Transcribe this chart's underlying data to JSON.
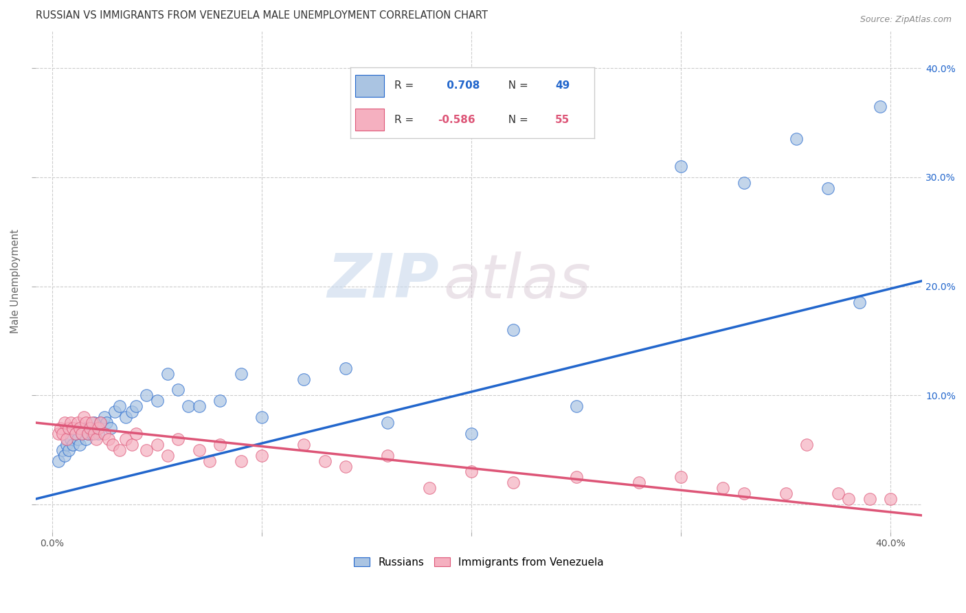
{
  "title": "RUSSIAN VS IMMIGRANTS FROM VENEZUELA MALE UNEMPLOYMENT CORRELATION CHART",
  "source": "Source: ZipAtlas.com",
  "ylabel": "Male Unemployment",
  "x_ticks": [
    0.0,
    0.1,
    0.2,
    0.3,
    0.4
  ],
  "x_tick_labels": [
    "0.0%",
    "",
    "",
    "",
    "40.0%"
  ],
  "y_ticks_left": [
    0.0,
    0.1,
    0.2,
    0.3,
    0.4
  ],
  "y_tick_labels_left": [
    "",
    "",
    "",
    "",
    ""
  ],
  "y_ticks_right": [
    0.1,
    0.2,
    0.3,
    0.4
  ],
  "y_tick_labels_right": [
    "10.0%",
    "20.0%",
    "30.0%",
    "40.0%"
  ],
  "xlim": [
    -0.008,
    0.415
  ],
  "ylim": [
    -0.025,
    0.435
  ],
  "legend_labels": [
    "Russians",
    "Immigrants from Venezuela"
  ],
  "russian_R": 0.708,
  "russian_N": 49,
  "venezuela_R": -0.586,
  "venezuela_N": 55,
  "russian_color": "#aac4e2",
  "venezuela_color": "#f5b0c0",
  "russian_line_color": "#2266cc",
  "venezuela_line_color": "#dd5577",
  "watermark_zip": "ZIP",
  "watermark_atlas": "atlas",
  "background_color": "#ffffff",
  "grid_color": "#cccccc",
  "title_color": "#333333",
  "title_fontsize": 10.5,
  "source_fontsize": 9,
  "russian_scatter_x": [
    0.003,
    0.005,
    0.006,
    0.007,
    0.008,
    0.009,
    0.01,
    0.011,
    0.012,
    0.013,
    0.014,
    0.015,
    0.016,
    0.017,
    0.018,
    0.019,
    0.02,
    0.021,
    0.022,
    0.023,
    0.025,
    0.026,
    0.028,
    0.03,
    0.032,
    0.035,
    0.038,
    0.04,
    0.045,
    0.05,
    0.055,
    0.06,
    0.065,
    0.07,
    0.08,
    0.09,
    0.1,
    0.12,
    0.14,
    0.16,
    0.2,
    0.22,
    0.25,
    0.3,
    0.33,
    0.355,
    0.37,
    0.385,
    0.395
  ],
  "russian_scatter_y": [
    0.04,
    0.05,
    0.045,
    0.055,
    0.05,
    0.06,
    0.055,
    0.065,
    0.06,
    0.055,
    0.065,
    0.07,
    0.06,
    0.065,
    0.07,
    0.065,
    0.075,
    0.07,
    0.065,
    0.075,
    0.08,
    0.075,
    0.07,
    0.085,
    0.09,
    0.08,
    0.085,
    0.09,
    0.1,
    0.095,
    0.12,
    0.105,
    0.09,
    0.09,
    0.095,
    0.12,
    0.08,
    0.115,
    0.125,
    0.075,
    0.065,
    0.16,
    0.09,
    0.31,
    0.295,
    0.335,
    0.29,
    0.185,
    0.365
  ],
  "venezuela_scatter_x": [
    0.003,
    0.004,
    0.005,
    0.006,
    0.007,
    0.008,
    0.009,
    0.01,
    0.011,
    0.012,
    0.013,
    0.014,
    0.015,
    0.016,
    0.017,
    0.018,
    0.019,
    0.02,
    0.021,
    0.022,
    0.023,
    0.025,
    0.027,
    0.029,
    0.032,
    0.035,
    0.038,
    0.04,
    0.045,
    0.05,
    0.055,
    0.06,
    0.07,
    0.075,
    0.08,
    0.09,
    0.1,
    0.12,
    0.13,
    0.14,
    0.16,
    0.18,
    0.2,
    0.22,
    0.25,
    0.28,
    0.3,
    0.32,
    0.33,
    0.35,
    0.36,
    0.375,
    0.38,
    0.39,
    0.4
  ],
  "venezuela_scatter_y": [
    0.065,
    0.07,
    0.065,
    0.075,
    0.06,
    0.07,
    0.075,
    0.07,
    0.065,
    0.075,
    0.07,
    0.065,
    0.08,
    0.075,
    0.065,
    0.07,
    0.075,
    0.065,
    0.06,
    0.07,
    0.075,
    0.065,
    0.06,
    0.055,
    0.05,
    0.06,
    0.055,
    0.065,
    0.05,
    0.055,
    0.045,
    0.06,
    0.05,
    0.04,
    0.055,
    0.04,
    0.045,
    0.055,
    0.04,
    0.035,
    0.045,
    0.015,
    0.03,
    0.02,
    0.025,
    0.02,
    0.025,
    0.015,
    0.01,
    0.01,
    0.055,
    0.01,
    0.005,
    0.005,
    0.005
  ],
  "blue_line_x0": -0.008,
  "blue_line_x1": 0.415,
  "blue_line_y0": 0.005,
  "blue_line_y1": 0.205,
  "pink_line_x0": -0.008,
  "pink_line_x1": 0.415,
  "pink_line_y0": 0.075,
  "pink_line_y1": -0.01
}
